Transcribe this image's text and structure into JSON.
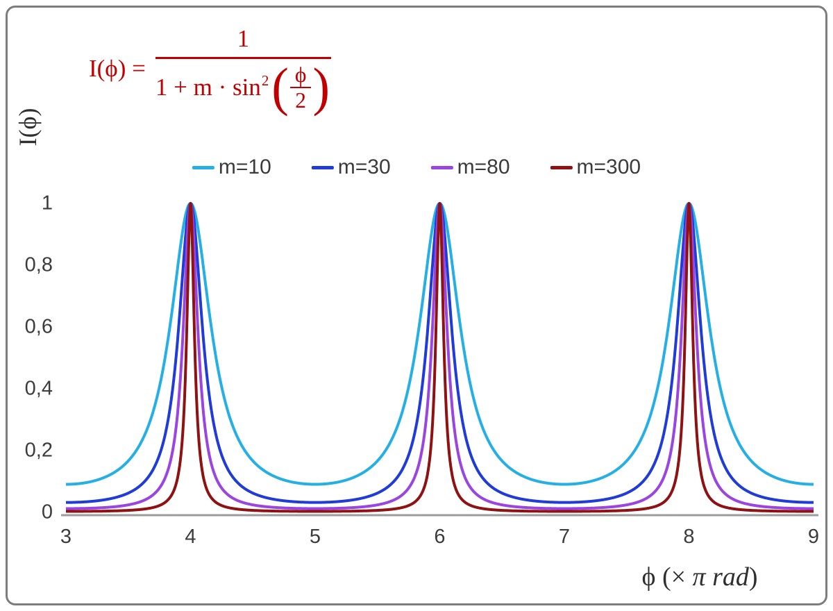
{
  "formula": {
    "lhs": "I(ϕ) =",
    "numerator": "1",
    "den_prefix": "1 + m · sin",
    "den_sup": "2",
    "lparen": "(",
    "rparen": ")",
    "inner_num": "ϕ",
    "inner_den": "2",
    "color": "#c00000"
  },
  "legend": {
    "items": [
      {
        "label": "m=10",
        "color": "#26afe5"
      },
      {
        "label": "m=30",
        "color": "#1f3bd8"
      },
      {
        "label": "m=80",
        "color": "#9b45e0"
      },
      {
        "label": "m=300",
        "color": "#8e1212"
      }
    ]
  },
  "axes": {
    "y_title": "I(ϕ)",
    "x_title_prefix": "ϕ  (× ",
    "x_title_italic": "π rad",
    "x_title_suffix": ")"
  },
  "chart_data": {
    "type": "line",
    "title": "I(ϕ) = 1 / (1 + m·sin²(ϕ/2))",
    "formula": "I(phi) = 1 / (1 + m * sin^2(phi/2)), phi measured in units of pi rad",
    "xlabel": "ϕ (× π rad)",
    "ylabel": "I(ϕ)",
    "xlim": [
      3,
      9
    ],
    "ylim": [
      0,
      1
    ],
    "x_unit": "π rad",
    "peaks_at_x": [
      4,
      6,
      8
    ],
    "peak_value": 1,
    "minima_at_x": [
      3,
      5,
      7,
      9
    ],
    "x_tick_values": [
      3,
      4,
      5,
      6,
      7,
      8,
      9
    ],
    "x_tick_labels": [
      "3",
      "4",
      "5",
      "6",
      "7",
      "8",
      "9"
    ],
    "y_tick_values": [
      0,
      0.2,
      0.4,
      0.6,
      0.8,
      1
    ],
    "y_tick_labels": [
      "0",
      "0,2",
      "0,4",
      "0,6",
      "0,8",
      "1"
    ],
    "grid": false,
    "legend_position": "top center",
    "series": [
      {
        "name": "m=10",
        "m": 10,
        "color": "#26afe5",
        "min_value": 0.0909
      },
      {
        "name": "m=30",
        "m": 30,
        "color": "#1f3bd8",
        "min_value": 0.0323
      },
      {
        "name": "m=80",
        "m": 80,
        "color": "#9b45e0",
        "min_value": 0.0123
      },
      {
        "name": "m=300",
        "m": 300,
        "color": "#8e1212",
        "min_value": 0.0033
      }
    ],
    "axis_line_color": "#9c9c9c"
  }
}
